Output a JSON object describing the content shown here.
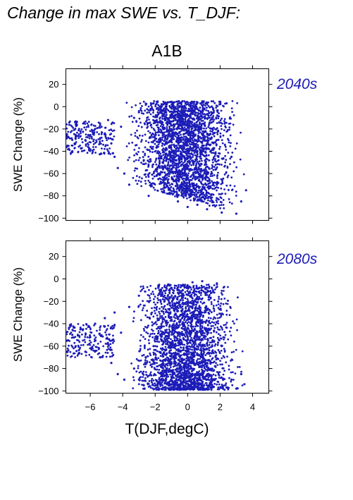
{
  "figure": {
    "title": "Change in max SWE vs. T_DJF:",
    "scenario": "A1B",
    "xlabel": "T(DJF,degC)",
    "point_color": "#1c1cb8"
  },
  "chart_data": [
    {
      "type": "scatter",
      "label": "2040s",
      "xlabel": "T(DJF,degC)",
      "ylabel": "SWE Change (%)",
      "xlim": [
        -7.5,
        5
      ],
      "ylim": [
        -102,
        34
      ],
      "xticks": [
        -6,
        -4,
        -2,
        0,
        2,
        4
      ],
      "xtick_labels": [
        "−6",
        "−4",
        "−2",
        "0",
        "2",
        "4"
      ],
      "xtick_labels_shown": false,
      "yticks": [
        20,
        0,
        -20,
        -40,
        -60,
        -80,
        -100
      ],
      "ytick_labels": [
        "20",
        "0",
        "−20",
        "−40",
        "−60",
        "−80",
        "−100"
      ],
      "grid": false,
      "point_cloud": {
        "x_range": [
          -7.5,
          3.7
        ],
        "y_range": [
          -98,
          6
        ],
        "dense_x_range": [
          -4,
          2
        ],
        "dense_y_range": [
          -90,
          5
        ],
        "dense_center": [
          -1.2,
          -40
        ],
        "tail": "points near -6 to -7 at about -20 to -40"
      },
      "points": [
        [
          -7.4,
          -35
        ],
        [
          -7.1,
          -40
        ],
        [
          -6.9,
          -28
        ],
        [
          -6.6,
          -22
        ],
        [
          -6.3,
          -30
        ],
        [
          -6.0,
          -26
        ],
        [
          -5.7,
          -20
        ],
        [
          -5.4,
          -15
        ],
        [
          -5.1,
          -24
        ],
        [
          -4.9,
          -12
        ],
        [
          -4.7,
          -33
        ],
        [
          -4.5,
          -45
        ],
        [
          -4.3,
          -55
        ],
        [
          -4.1,
          -18
        ],
        [
          -3.9,
          -60
        ],
        [
          -3.6,
          -70
        ],
        [
          -3.3,
          -10
        ],
        [
          -3.0,
          -5
        ],
        [
          -2.7,
          -48
        ],
        [
          -2.4,
          -80
        ],
        [
          -2.1,
          3
        ],
        [
          -1.8,
          -65
        ],
        [
          -1.5,
          2
        ],
        [
          -1.2,
          -78
        ],
        [
          -0.9,
          -40
        ],
        [
          -0.6,
          -85
        ],
        [
          -0.3,
          -20
        ],
        [
          0.0,
          -90
        ],
        [
          0.3,
          4
        ],
        [
          0.6,
          -88
        ],
        [
          0.9,
          -35
        ],
        [
          1.2,
          -92
        ],
        [
          1.5,
          -60
        ],
        [
          1.8,
          -70
        ],
        [
          2.1,
          -95
        ],
        [
          2.4,
          3
        ],
        [
          2.7,
          -45
        ],
        [
          3.0,
          -96
        ],
        [
          3.3,
          -85
        ],
        [
          3.6,
          -75
        ]
      ]
    },
    {
      "type": "scatter",
      "label": "2080s",
      "xlabel": "T(DJF,degC)",
      "ylabel": "SWE Change (%)",
      "xlim": [
        -7.5,
        5
      ],
      "ylim": [
        -102,
        34
      ],
      "xticks": [
        -6,
        -4,
        -2,
        0,
        2,
        4
      ],
      "xtick_labels": [
        "−6",
        "−4",
        "−2",
        "0",
        "2",
        "4"
      ],
      "xtick_labels_shown": true,
      "yticks": [
        20,
        0,
        -20,
        -40,
        -60,
        -80,
        -100
      ],
      "ytick_labels": [
        "20",
        "0",
        "−20",
        "−40",
        "−60",
        "−80",
        "−100"
      ],
      "grid": false,
      "point_cloud": {
        "x_range": [
          -7.5,
          3.6
        ],
        "y_range": [
          -99,
          0
        ],
        "dense_x_range": [
          -4,
          2
        ],
        "dense_y_range": [
          -98,
          -5
        ],
        "dense_center": [
          -1.0,
          -60
        ],
        "tail": "points near -6 to -7 at about -40 to -70"
      },
      "points": [
        [
          -7.4,
          -55
        ],
        [
          -7.1,
          -50
        ],
        [
          -6.9,
          -60
        ],
        [
          -6.6,
          -45
        ],
        [
          -6.3,
          -65
        ],
        [
          -6.0,
          -52
        ],
        [
          -5.7,
          -40
        ],
        [
          -5.4,
          -70
        ],
        [
          -5.1,
          -35
        ],
        [
          -4.9,
          -58
        ],
        [
          -4.7,
          -75
        ],
        [
          -4.5,
          -30
        ],
        [
          -4.3,
          -85
        ],
        [
          -4.1,
          -48
        ],
        [
          -3.9,
          -90
        ],
        [
          -3.6,
          -25
        ],
        [
          -3.3,
          -80
        ],
        [
          -3.0,
          -15
        ],
        [
          -2.7,
          -95
        ],
        [
          -2.4,
          -20
        ],
        [
          -2.1,
          -60
        ],
        [
          -1.8,
          -8
        ],
        [
          -1.5,
          -97
        ],
        [
          -1.2,
          -5
        ],
        [
          -0.9,
          -70
        ],
        [
          -0.6,
          -96
        ],
        [
          -0.3,
          -10
        ],
        [
          0.0,
          -88
        ],
        [
          0.3,
          -3
        ],
        [
          0.6,
          -96
        ],
        [
          0.9,
          -2
        ],
        [
          1.2,
          -75
        ],
        [
          1.5,
          -95
        ],
        [
          1.8,
          -4
        ],
        [
          2.1,
          -60
        ],
        [
          2.4,
          -97
        ],
        [
          2.7,
          -90
        ],
        [
          3.0,
          -98
        ],
        [
          3.3,
          -85
        ],
        [
          3.5,
          -94
        ]
      ]
    }
  ]
}
